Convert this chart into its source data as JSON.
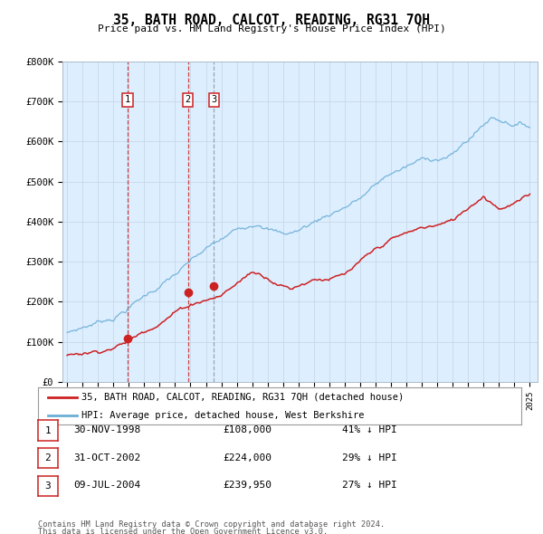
{
  "title": "35, BATH ROAD, CALCOT, READING, RG31 7QH",
  "subtitle": "Price paid vs. HM Land Registry's House Price Index (HPI)",
  "ylabel_ticks": [
    "£0",
    "£100K",
    "£200K",
    "£300K",
    "£400K",
    "£500K",
    "£600K",
    "£700K",
    "£800K"
  ],
  "ylim": [
    0,
    800000
  ],
  "xlim_start": 1994.7,
  "xlim_end": 2025.5,
  "hpi_color": "#6baed6",
  "price_color": "#cc2222",
  "plot_bg_color": "#ddeeff",
  "transactions": [
    {
      "num": 1,
      "date_str": "30-NOV-1998",
      "year": 1998.92,
      "price": 108000,
      "vline_color": "#cc2222",
      "vline_style": "--"
    },
    {
      "num": 2,
      "date_str": "31-OCT-2002",
      "year": 2002.83,
      "price": 224000,
      "vline_color": "#cc2222",
      "vline_style": "--"
    },
    {
      "num": 3,
      "date_str": "09-JUL-2004",
      "year": 2004.52,
      "price": 239950,
      "vline_color": "#8899aa",
      "vline_style": "--"
    }
  ],
  "legend_label_red": "35, BATH ROAD, CALCOT, READING, RG31 7QH (detached house)",
  "legend_label_blue": "HPI: Average price, detached house, West Berkshire",
  "table_rows": [
    {
      "num": 1,
      "date_str": "30-NOV-1998",
      "price_str": "£108,000",
      "pct_str": "41% ↓ HPI"
    },
    {
      "num": 2,
      "date_str": "31-OCT-2002",
      "price_str": "£224,000",
      "pct_str": "29% ↓ HPI"
    },
    {
      "num": 3,
      "date_str": "09-JUL-2004",
      "price_str": "£239,950",
      "pct_str": "27% ↓ HPI"
    }
  ],
  "footnote_line1": "Contains HM Land Registry data © Crown copyright and database right 2024.",
  "footnote_line2": "This data is licensed under the Open Government Licence v3.0.",
  "background_color": "#ffffff",
  "grid_color": "#c8d8e8"
}
